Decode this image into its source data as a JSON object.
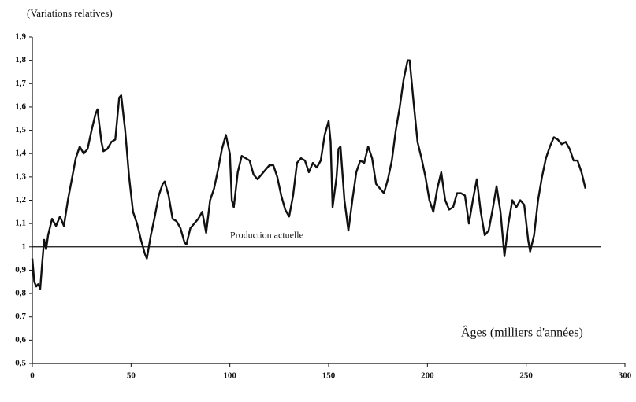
{
  "chart_data": {
    "type": "line",
    "y_axis_title": "(Variations relatives)",
    "annotation": "Âges (milliers d'années)",
    "reference_line": {
      "label": "Production actuelle",
      "value": 1
    },
    "xlim": [
      0,
      300
    ],
    "xticks": [
      0,
      50,
      100,
      150,
      200,
      250,
      300
    ],
    "ylim": [
      0.5,
      1.9
    ],
    "yticks": [
      {
        "value": 0.5,
        "label": "0,5"
      },
      {
        "value": 0.6,
        "label": "0,6"
      },
      {
        "value": 0.7,
        "label": "0,7"
      },
      {
        "value": 0.8,
        "label": "0,8"
      },
      {
        "value": 0.9,
        "label": "0,9"
      },
      1,
      {
        "value": 1.1,
        "label": "1,1"
      },
      {
        "value": 1.2,
        "label": "1,2"
      },
      {
        "value": 1.3,
        "label": "1,3"
      },
      {
        "value": 1.4,
        "label": "1,4"
      },
      {
        "value": 1.5,
        "label": "1,5"
      },
      {
        "value": 1.6,
        "label": "1,6"
      },
      {
        "value": 1.7,
        "label": "1,7"
      },
      {
        "value": 1.8,
        "label": "1,8"
      },
      {
        "value": 1.9,
        "label": "1,9"
      }
    ],
    "color": "#111111",
    "x": [
      0,
      1,
      2,
      3,
      4,
      5,
      6,
      7,
      8,
      10,
      12,
      14,
      16,
      18,
      20,
      22,
      24,
      26,
      28,
      30,
      32,
      33,
      35,
      36,
      38,
      40,
      42,
      44,
      45,
      47,
      49,
      51,
      53,
      55,
      57,
      58,
      60,
      62,
      64,
      66,
      67,
      69,
      71,
      73,
      75,
      77,
      78,
      80,
      82,
      84,
      86,
      88,
      90,
      92,
      94,
      96,
      98,
      100,
      101,
      102,
      104,
      106,
      108,
      110,
      112,
      114,
      116,
      118,
      120,
      122,
      124,
      126,
      128,
      130,
      132,
      134,
      136,
      138,
      140,
      142,
      144,
      146,
      148,
      150,
      151,
      152,
      154,
      155,
      156,
      158,
      160,
      162,
      164,
      166,
      168,
      170,
      172,
      174,
      176,
      178,
      180,
      182,
      184,
      186,
      188,
      190,
      191,
      193,
      195,
      197,
      199,
      201,
      203,
      205,
      207,
      209,
      211,
      213,
      215,
      217,
      219,
      221,
      223,
      225,
      227,
      229,
      231,
      233,
      235,
      237,
      239,
      241,
      243,
      245,
      247,
      249,
      251,
      252,
      254,
      256,
      258,
      260,
      262,
      264,
      266,
      268,
      270,
      272,
      274,
      276,
      278,
      280
    ],
    "values": [
      0.95,
      0.85,
      0.83,
      0.84,
      0.82,
      0.93,
      1.03,
      0.99,
      1.05,
      1.12,
      1.09,
      1.13,
      1.09,
      1.2,
      1.29,
      1.38,
      1.43,
      1.4,
      1.42,
      1.5,
      1.57,
      1.59,
      1.45,
      1.41,
      1.42,
      1.45,
      1.46,
      1.64,
      1.65,
      1.5,
      1.3,
      1.15,
      1.1,
      1.03,
      0.97,
      0.95,
      1.05,
      1.13,
      1.22,
      1.27,
      1.28,
      1.22,
      1.12,
      1.11,
      1.08,
      1.02,
      1.01,
      1.08,
      1.1,
      1.12,
      1.15,
      1.06,
      1.2,
      1.25,
      1.33,
      1.42,
      1.48,
      1.4,
      1.2,
      1.17,
      1.32,
      1.39,
      1.38,
      1.37,
      1.31,
      1.29,
      1.31,
      1.33,
      1.35,
      1.35,
      1.3,
      1.22,
      1.16,
      1.13,
      1.22,
      1.36,
      1.38,
      1.37,
      1.32,
      1.36,
      1.34,
      1.37,
      1.48,
      1.54,
      1.45,
      1.17,
      1.3,
      1.42,
      1.43,
      1.2,
      1.07,
      1.2,
      1.32,
      1.37,
      1.36,
      1.43,
      1.38,
      1.27,
      1.25,
      1.23,
      1.29,
      1.37,
      1.5,
      1.6,
      1.72,
      1.8,
      1.8,
      1.62,
      1.45,
      1.38,
      1.3,
      1.2,
      1.15,
      1.25,
      1.32,
      1.2,
      1.16,
      1.17,
      1.23,
      1.23,
      1.22,
      1.1,
      1.2,
      1.29,
      1.15,
      1.05,
      1.07,
      1.16,
      1.26,
      1.15,
      0.96,
      1.1,
      1.2,
      1.17,
      1.2,
      1.18,
      1.03,
      0.98,
      1.05,
      1.2,
      1.3,
      1.38,
      1.43,
      1.47,
      1.46,
      1.44,
      1.45,
      1.42,
      1.37,
      1.37,
      1.32,
      1.25
    ]
  }
}
